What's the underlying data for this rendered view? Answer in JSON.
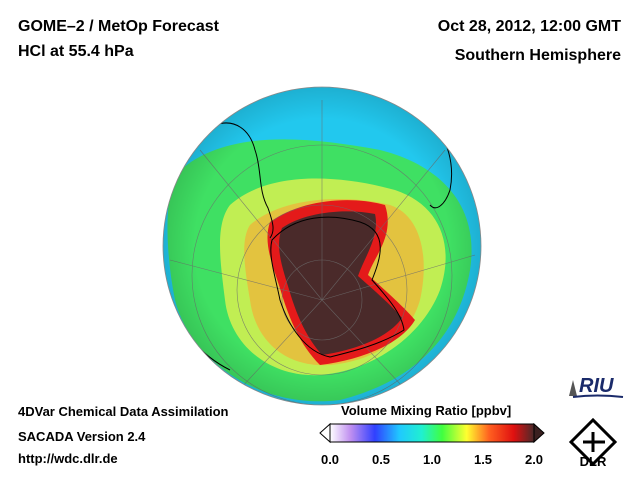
{
  "header": {
    "title": "GOME–2 / MetOp Forecast",
    "subtitle": "HCl at 55.4 hPa",
    "datetime": "Oct 28, 2012, 12:00 GMT",
    "hemisphere": "Southern Hemisphere"
  },
  "footer": {
    "line1": "4DVar Chemical Data Assimilation",
    "line2": "SACADA Version 2.4",
    "url": "http://wdc.dlr.de"
  },
  "colorbar": {
    "title": "Volume Mixing Ratio [ppbv]",
    "ticks": [
      "0.0",
      "0.5",
      "1.0",
      "1.5",
      "2.0"
    ],
    "range": [
      0.0,
      2.0
    ],
    "colors": [
      "#ffffff",
      "#c090f0",
      "#3040ff",
      "#20c8ff",
      "#20f0d0",
      "#40ff40",
      "#ffff30",
      "#ff6020",
      "#e01010",
      "#4a2a2a"
    ]
  },
  "logos": {
    "riu": "RIU",
    "dlr": "DLR"
  },
  "map": {
    "projection": "orthographic south polar",
    "field_colors": {
      "high": "#4a2a2a",
      "edge": "#e01818",
      "mid_low": "#ff9020",
      "mid": "#f0f040",
      "low": "#40e060",
      "lowest": "#20c8f0"
    }
  }
}
